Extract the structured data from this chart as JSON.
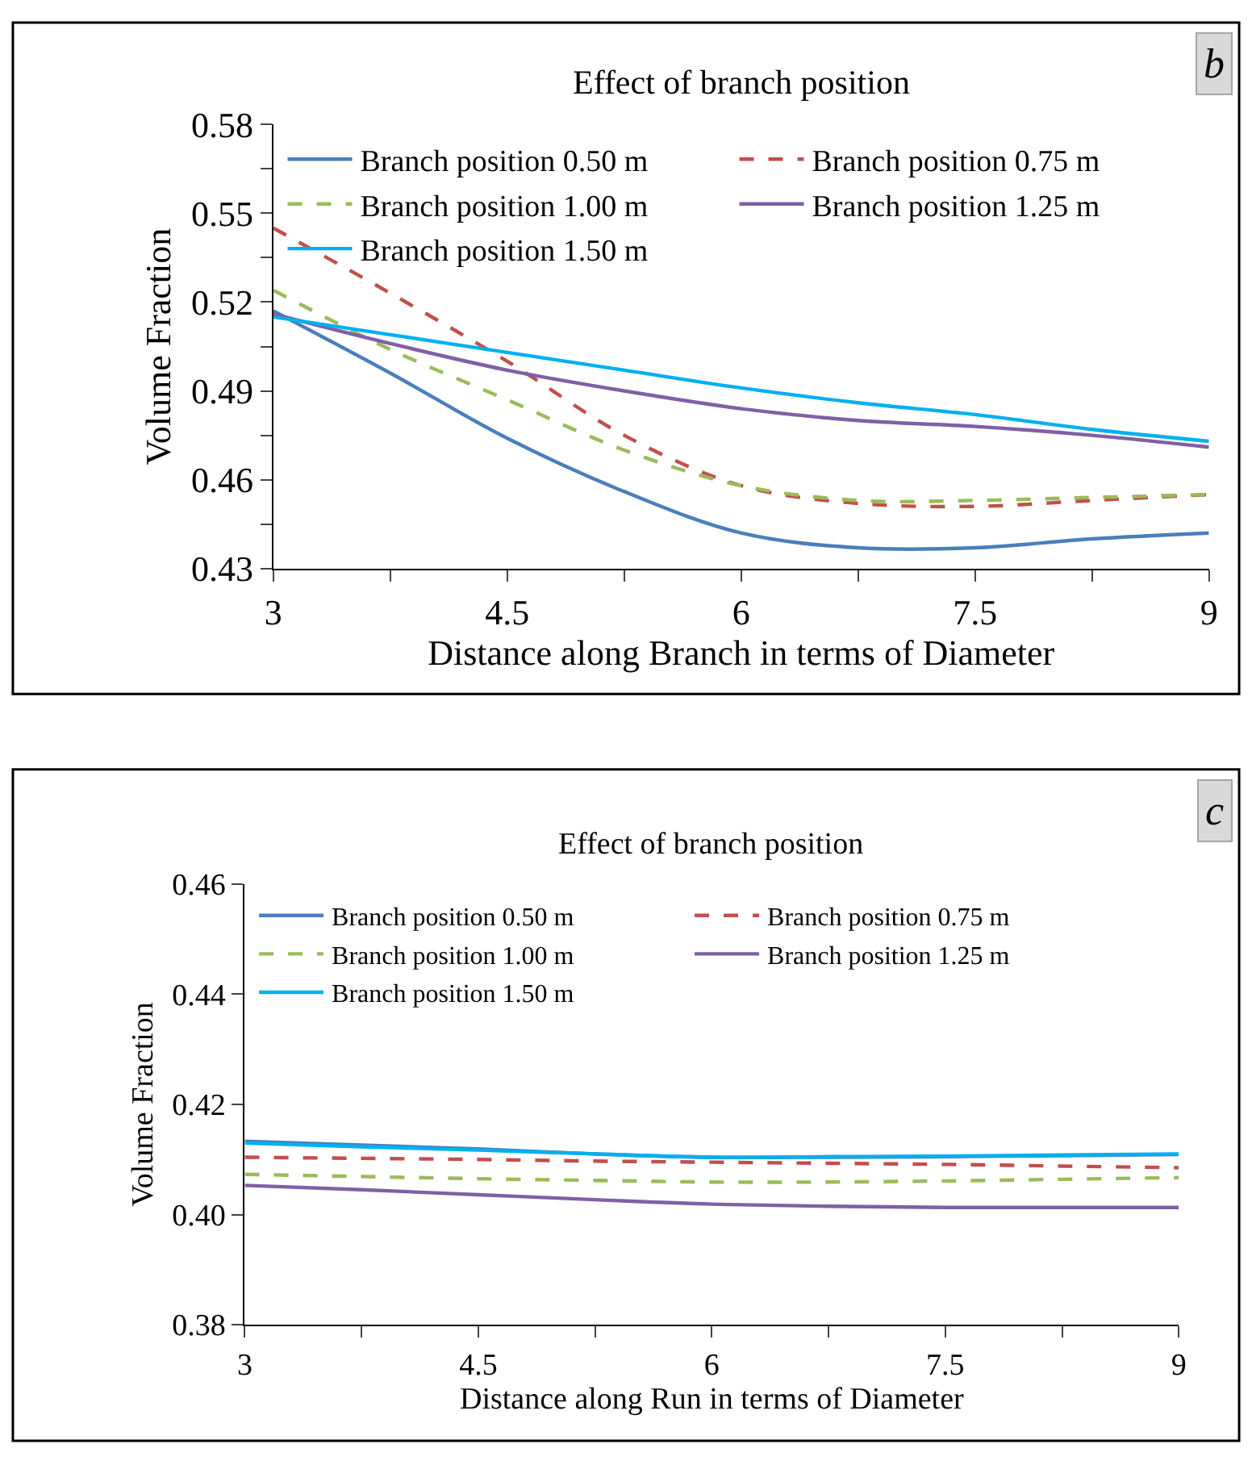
{
  "chart_data": [
    {
      "type": "line",
      "title": "Effect of branch position",
      "xlabel": "Distance along Branch in terms of Diameter",
      "ylabel": "Volume Fraction",
      "annotations": [
        "b"
      ],
      "legend": "top",
      "x": [
        3,
        3.75,
        4.5,
        5.25,
        6,
        6.75,
        7.5,
        8.25,
        9
      ],
      "xlim": [
        3,
        9
      ],
      "xticks": [
        3,
        {
          "value": 3.75,
          "label": null
        },
        4.5,
        {
          "value": 5.25,
          "label": null
        },
        6,
        {
          "value": 6.75,
          "label": null
        },
        7.5,
        {
          "value": 8.25,
          "label": null
        },
        9
      ],
      "ylim": [
        0.43,
        0.58
      ],
      "yticks": [
        0.43,
        {
          "value": 0.445,
          "label": null
        },
        0.46,
        {
          "value": 0.475,
          "label": null
        },
        0.49,
        {
          "value": 0.505,
          "label": null
        },
        0.52,
        {
          "value": 0.535,
          "label": null
        },
        0.55,
        {
          "value": 0.565,
          "label": null
        },
        0.58
      ],
      "series": [
        {
          "name": "Branch position 0.50 m",
          "color": "#4a7ebb",
          "line_style": "solid",
          "values": [
            0.517,
            0.496,
            0.474,
            0.456,
            0.442,
            0.437,
            0.437,
            0.44,
            0.442
          ]
        },
        {
          "name": "Branch position 0.75 m",
          "color": "#c0504d",
          "line_style": "dashed",
          "values": [
            0.545,
            0.523,
            0.5,
            0.475,
            0.458,
            0.452,
            0.451,
            0.453,
            0.455
          ]
        },
        {
          "name": "Branch position 1.00 m",
          "color": "#9bbb59",
          "line_style": "dashed",
          "values": [
            0.524,
            0.504,
            0.487,
            0.47,
            0.458,
            0.453,
            0.453,
            0.454,
            0.455
          ]
        },
        {
          "name": "Branch position 1.25 m",
          "color": "#7f5fa6",
          "line_style": "solid",
          "values": [
            0.516,
            0.506,
            0.497,
            0.49,
            0.484,
            0.48,
            0.478,
            0.475,
            0.471
          ]
        },
        {
          "name": "Branch position 1.50 m",
          "color": "#00b0f0",
          "line_style": "solid",
          "values": [
            0.515,
            0.509,
            0.503,
            0.497,
            0.491,
            0.486,
            0.482,
            0.477,
            0.473
          ]
        }
      ]
    },
    {
      "type": "line",
      "title": "Effect of branch position",
      "xlabel": "Distance along Run in terms of Diameter",
      "ylabel": "Volume Fraction",
      "annotations": [
        "c"
      ],
      "legend": "top",
      "x": [
        3,
        3.75,
        4.5,
        5.25,
        6,
        6.75,
        7.5,
        8.25,
        9
      ],
      "xlim": [
        3,
        9
      ],
      "xticks": [
        3,
        {
          "value": 3.75,
          "label": null
        },
        4.5,
        {
          "value": 5.25,
          "label": null
        },
        6,
        {
          "value": 6.75,
          "label": null
        },
        7.5,
        {
          "value": 8.25,
          "label": null
        },
        9
      ],
      "ylim": [
        0.38,
        0.46
      ],
      "yticks": [
        0.38,
        {
          "value": 0.4,
          "label": "0.40"
        },
        0.42,
        0.44,
        0.46
      ],
      "series": [
        {
          "name": "Branch position 0.50 m",
          "color": "#4a7ebb",
          "line_style": "solid",
          "values": [
            0.4133,
            0.4126,
            0.4119,
            0.411,
            0.4104,
            0.4104,
            0.4105,
            0.4107,
            0.4109
          ]
        },
        {
          "name": "Branch position 0.75 m",
          "color": "#c0504d",
          "line_style": "dashed",
          "values": [
            0.4104,
            0.4102,
            0.41,
            0.4097,
            0.4095,
            0.4093,
            0.4091,
            0.4088,
            0.4085
          ]
        },
        {
          "name": "Branch position 1.00 m",
          "color": "#9bbb59",
          "line_style": "dashed",
          "values": [
            0.4073,
            0.4069,
            0.4065,
            0.4062,
            0.4059,
            0.4059,
            0.4061,
            0.4064,
            0.4067
          ]
        },
        {
          "name": "Branch position 1.25 m",
          "color": "#7f5fa6",
          "line_style": "solid",
          "values": [
            0.4053,
            0.4045,
            0.4036,
            0.4027,
            0.4019,
            0.4015,
            0.4013,
            0.4013,
            0.4013
          ]
        },
        {
          "name": "Branch position 1.50 m",
          "color": "#00b0f0",
          "line_style": "solid",
          "values": [
            0.413,
            0.4123,
            0.4117,
            0.411,
            0.4104,
            0.4105,
            0.4106,
            0.4108,
            0.411
          ]
        }
      ]
    }
  ]
}
